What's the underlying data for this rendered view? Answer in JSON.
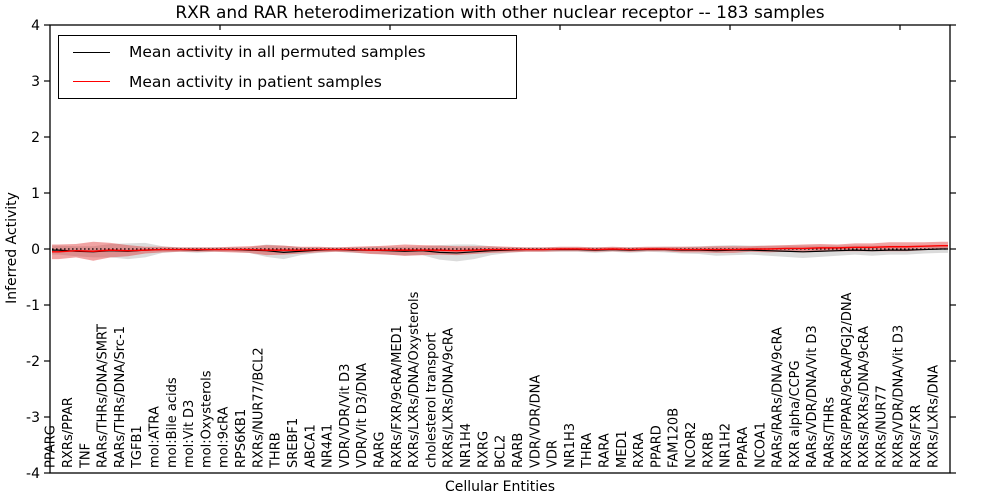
{
  "chart_data": {
    "type": "line",
    "title": "RXR and RAR heterodimerization with other nuclear receptor -- 183 samples",
    "xlabel": "Cellular Entities",
    "ylabel": "Inferred Activity",
    "ylim": [
      -4,
      4
    ],
    "yticks": [
      4,
      3,
      2,
      1,
      0,
      -1,
      -2,
      -3,
      -4
    ],
    "grid": false,
    "legend_position": "upper left",
    "zero_reference_line": 0,
    "x_tick_labels_rotation": 90,
    "categories": [
      "PPARG",
      "RXRs/PPAR",
      "TNF",
      "RARs/THRs/DNA/SMRT",
      "RARs/THRs/DNA/Src-1",
      "TGFB1",
      "mol:ATRA",
      "mol:Bile acids",
      "mol:Vit D3",
      "mol:Oxysterols",
      "mol:9cRA",
      "RPS6KB1",
      "RXRs/NUR77/BCL2",
      "THRB",
      "SREBF1",
      "ABCA1",
      "NR4A1",
      "VDR/VDR/Vit D3",
      "VDR/Vit D3/DNA",
      "RARG",
      "RXRs/FXR/9cRA/MED1",
      "RXRs/LXRs/DNA/Oxysterols",
      "cholesterol transport",
      "RXRs/LXRs/DNA/9cRA",
      "NR1H4",
      "RXRG",
      "BCL2",
      "RARB",
      "VDR/VDR/DNA",
      "VDR",
      "NR1H3",
      "THRA",
      "RARA",
      "MED1",
      "RXRA",
      "PPARD",
      "FAM120B",
      "NCOR2",
      "RXRB",
      "NR1H2",
      "PPARA",
      "NCOA1",
      "RARs/RARs/DNA/9cRA",
      "RXR alpha/CCPG",
      "RARs/VDR/DNA/Vit D3",
      "RARs/THRs",
      "RXRs/PPAR/9cRA/PGJ2/DNA",
      "RXRs/RXRs/DNA/9cRA",
      "RXRs/NUR77",
      "RXRs/VDR/DNA/Vit D3",
      "RXRs/FXR",
      "RXRs/LXRs/DNA"
    ],
    "series": [
      {
        "name": "Mean activity in all permuted samples",
        "color": "#000000",
        "band_color": "#999999",
        "band_opacity": 0.35,
        "values": [
          -0.02,
          -0.04,
          -0.05,
          -0.03,
          -0.04,
          -0.02,
          -0.01,
          -0.01,
          -0.02,
          -0.01,
          -0.01,
          -0.02,
          -0.03,
          -0.06,
          -0.04,
          -0.02,
          -0.01,
          -0.02,
          -0.02,
          -0.03,
          -0.04,
          -0.03,
          -0.06,
          -0.07,
          -0.05,
          -0.03,
          -0.02,
          -0.01,
          -0.01,
          -0.01,
          -0.01,
          -0.02,
          -0.01,
          -0.02,
          -0.01,
          -0.01,
          -0.02,
          -0.02,
          -0.03,
          -0.02,
          -0.02,
          -0.03,
          -0.04,
          -0.05,
          -0.04,
          -0.03,
          -0.02,
          -0.03,
          -0.02,
          -0.02,
          -0.01,
          0.0
        ],
        "band_halfwidth": [
          0.08,
          0.09,
          0.1,
          0.12,
          0.14,
          0.13,
          0.06,
          0.04,
          0.05,
          0.04,
          0.04,
          0.05,
          0.11,
          0.12,
          0.07,
          0.05,
          0.04,
          0.05,
          0.06,
          0.07,
          0.08,
          0.08,
          0.13,
          0.15,
          0.13,
          0.08,
          0.05,
          0.04,
          0.04,
          0.04,
          0.04,
          0.05,
          0.04,
          0.05,
          0.04,
          0.05,
          0.06,
          0.07,
          0.09,
          0.09,
          0.08,
          0.09,
          0.1,
          0.11,
          0.1,
          0.09,
          0.08,
          0.09,
          0.08,
          0.08,
          0.07,
          0.07
        ]
      },
      {
        "name": "Mean activity in patient samples",
        "color": "#ff0000",
        "band_color": "#dd3333",
        "band_opacity": 0.45,
        "values": [
          -0.05,
          -0.03,
          -0.04,
          -0.02,
          -0.03,
          -0.02,
          -0.01,
          -0.01,
          -0.01,
          -0.01,
          -0.01,
          -0.01,
          -0.02,
          -0.02,
          -0.02,
          -0.01,
          -0.01,
          -0.01,
          -0.02,
          -0.02,
          -0.02,
          -0.02,
          -0.02,
          -0.03,
          -0.02,
          -0.01,
          -0.01,
          -0.01,
          -0.01,
          0.0,
          0.0,
          -0.01,
          0.0,
          -0.01,
          0.0,
          0.0,
          -0.01,
          -0.01,
          -0.01,
          -0.01,
          0.0,
          0.0,
          0.01,
          0.01,
          0.02,
          0.02,
          0.03,
          0.03,
          0.04,
          0.04,
          0.05,
          0.06
        ],
        "band_halfwidth": [
          0.13,
          0.12,
          0.17,
          0.13,
          0.1,
          0.06,
          0.05,
          0.04,
          0.04,
          0.04,
          0.05,
          0.06,
          0.09,
          0.08,
          0.06,
          0.05,
          0.04,
          0.05,
          0.07,
          0.08,
          0.1,
          0.09,
          0.08,
          0.08,
          0.07,
          0.06,
          0.05,
          0.04,
          0.04,
          0.04,
          0.04,
          0.04,
          0.04,
          0.04,
          0.04,
          0.04,
          0.05,
          0.05,
          0.06,
          0.06,
          0.05,
          0.06,
          0.06,
          0.07,
          0.07,
          0.06,
          0.07,
          0.07,
          0.08,
          0.08,
          0.07,
          0.07
        ]
      }
    ]
  }
}
